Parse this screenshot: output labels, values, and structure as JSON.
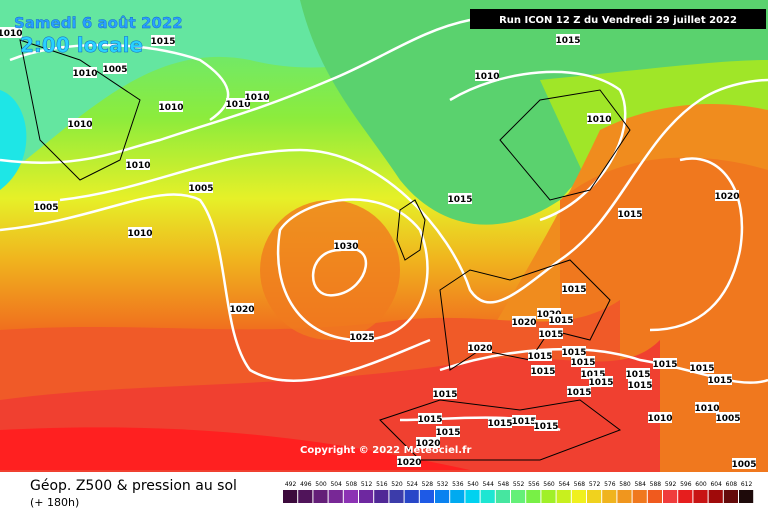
{
  "header": {
    "date": "Samedi 6 août 2022",
    "time": "2:00 locale",
    "run": "Run ICON 12 Z du Vendredi 29 juillet 2022"
  },
  "map": {
    "isobar_labels": [
      "1010",
      "1015",
      "1010",
      "1005",
      "1010",
      "1010",
      "1010",
      "1010",
      "1010",
      "1005",
      "1005",
      "1010",
      "1015",
      "1010",
      "1010",
      "1015",
      "1015",
      "1020",
      "1030",
      "1020",
      "1025",
      "1015",
      "1020",
      "1020",
      "1015",
      "1015",
      "1020",
      "1015",
      "1015",
      "1015",
      "1015",
      "1015",
      "1015",
      "1015",
      "1015",
      "1015",
      "1015",
      "1015",
      "1015",
      "1015",
      "1010",
      "1010",
      "1005",
      "1015",
      "1015",
      "1015",
      "1015",
      "1015",
      "1020",
      "1020",
      "1005"
    ],
    "copyright": "Copyright © 2022 Meteociel.fr"
  },
  "footer": {
    "title": "Géop. Z500 & pression au sol",
    "subtitle": "(+ 180h)",
    "scale": [
      {
        "label": "492",
        "color": "#3c0a3c"
      },
      {
        "label": "496",
        "color": "#50145a"
      },
      {
        "label": "500",
        "color": "#641e78"
      },
      {
        "label": "504",
        "color": "#782896"
      },
      {
        "label": "508",
        "color": "#8c32b4"
      },
      {
        "label": "512",
        "color": "#6e28a0"
      },
      {
        "label": "516",
        "color": "#502896"
      },
      {
        "label": "520",
        "color": "#3c3caa"
      },
      {
        "label": "524",
        "color": "#2846c8"
      },
      {
        "label": "528",
        "color": "#1e5ae6"
      },
      {
        "label": "532",
        "color": "#0a82f0"
      },
      {
        "label": "536",
        "color": "#00aaf0"
      },
      {
        "label": "540",
        "color": "#00d2f0"
      },
      {
        "label": "544",
        "color": "#1ee6d2"
      },
      {
        "label": "548",
        "color": "#46e6a0"
      },
      {
        "label": "552",
        "color": "#64f078"
      },
      {
        "label": "556",
        "color": "#78f046"
      },
      {
        "label": "560",
        "color": "#a0f028"
      },
      {
        "label": "564",
        "color": "#c8f01e"
      },
      {
        "label": "568",
        "color": "#f0f01e"
      },
      {
        "label": "572",
        "color": "#f0d21e"
      },
      {
        "label": "576",
        "color": "#f0b41e"
      },
      {
        "label": "580",
        "color": "#f0961e"
      },
      {
        "label": "584",
        "color": "#f0781e"
      },
      {
        "label": "588",
        "color": "#f05a1e"
      },
      {
        "label": "592",
        "color": "#f03c3c"
      },
      {
        "label": "596",
        "color": "#e61e1e"
      },
      {
        "label": "600",
        "color": "#c81414"
      },
      {
        "label": "604",
        "color": "#a00a0a"
      },
      {
        "label": "608",
        "color": "#640a0a"
      },
      {
        "label": "612",
        "color": "#1e0a0a"
      }
    ]
  }
}
